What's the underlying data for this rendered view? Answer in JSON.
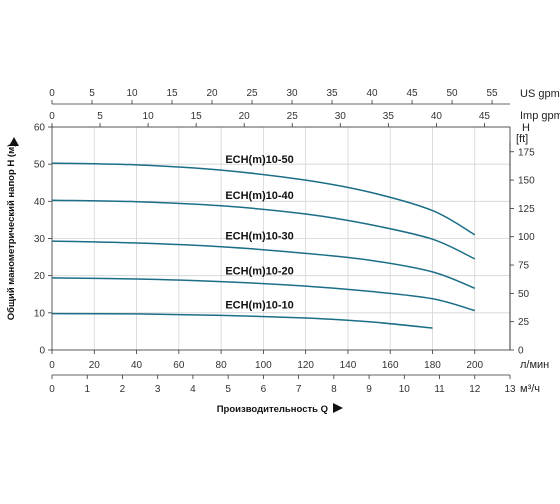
{
  "chart_data": {
    "type": "line",
    "title": "",
    "ylabel": "Общий манометрический напор H (м)",
    "xlabel": "Производительность Q",
    "grid": true,
    "axes": {
      "y_left": {
        "unit": "",
        "range": [
          0,
          60
        ],
        "ticks": [
          "0",
          "10",
          "20",
          "30",
          "40",
          "50",
          "60"
        ]
      },
      "y_right": {
        "unit_line1": "H",
        "unit_line2": "[ft]",
        "range": [
          0,
          196.85
        ],
        "ticks": [
          "0",
          "25",
          "50",
          "75",
          "100",
          "125",
          "150",
          "175"
        ]
      },
      "x_lpm": {
        "unit": "л/мин",
        "range": [
          0,
          216.67
        ],
        "ticks": [
          "0",
          "20",
          "40",
          "60",
          "80",
          "100",
          "120",
          "140",
          "160",
          "180",
          "200"
        ]
      },
      "x_m3h": {
        "unit": "м³/ч",
        "range": [
          0,
          13
        ],
        "ticks": [
          "0",
          "1",
          "2",
          "3",
          "4",
          "5",
          "6",
          "7",
          "8",
          "9",
          "10",
          "11",
          "12",
          "13"
        ]
      },
      "x_us_gpm": {
        "unit": "US gpm",
        "range": [
          0,
          57.24
        ],
        "ticks": [
          "0",
          "5",
          "10",
          "15",
          "20",
          "25",
          "30",
          "35",
          "40",
          "45",
          "50",
          "55"
        ]
      },
      "x_imp_gpm": {
        "unit": "Imp gpm",
        "range": [
          0,
          47.66
        ],
        "ticks": [
          "0",
          "5",
          "10",
          "15",
          "20",
          "25",
          "30",
          "35",
          "40",
          "45"
        ]
      }
    },
    "series": [
      {
        "name": "ECH(m)10-50",
        "x": [
          0,
          40,
          80,
          120,
          150,
          180,
          200
        ],
        "values": [
          50.3,
          49.8,
          48.4,
          45.7,
          42.5,
          37.5,
          31.0
        ]
      },
      {
        "name": "ECH(m)10-40",
        "x": [
          0,
          40,
          80,
          120,
          150,
          180,
          200
        ],
        "values": [
          40.3,
          39.9,
          38.8,
          36.6,
          33.8,
          29.8,
          24.5
        ]
      },
      {
        "name": "ECH(m)10-30",
        "x": [
          0,
          40,
          80,
          120,
          150,
          180,
          200
        ],
        "values": [
          29.3,
          28.8,
          27.8,
          26.0,
          24.2,
          21.0,
          16.6
        ]
      },
      {
        "name": "ECH(m)10-20",
        "x": [
          0,
          40,
          80,
          120,
          150,
          180,
          200
        ],
        "values": [
          19.4,
          19.1,
          18.4,
          17.2,
          15.8,
          13.8,
          10.6
        ]
      },
      {
        "name": "ECH(m)10-10",
        "x": [
          0,
          40,
          80,
          120,
          150,
          180
        ],
        "values": [
          9.8,
          9.7,
          9.3,
          8.6,
          7.6,
          5.9
        ]
      }
    ],
    "colors": {
      "curve": "#1b6e86",
      "grid": "#d4d4d4",
      "axis": "#333333"
    }
  }
}
